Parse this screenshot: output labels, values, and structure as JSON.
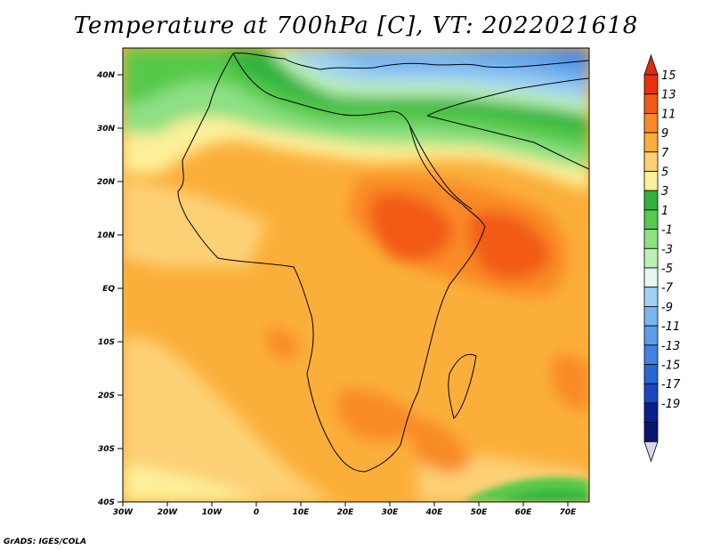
{
  "title": "Temperature at 700hPa [C], VT: 2022021618",
  "footer": "GrADS: IGES/COLA",
  "map": {
    "lat_labels": [
      "40N",
      "30N",
      "20N",
      "10N",
      "EQ",
      "10S",
      "20S",
      "30S",
      "40S"
    ],
    "lon_labels": [
      "30W",
      "20W",
      "10W",
      "0",
      "10E",
      "20E",
      "30E",
      "40E",
      "50E",
      "60E",
      "70E"
    ],
    "lat_range": [
      -40,
      45
    ],
    "lon_range": [
      -30,
      75
    ]
  },
  "colorbar": {
    "labels": [
      "15",
      "13",
      "11",
      "9",
      "7",
      "5",
      "3",
      "1",
      "-1",
      "-3",
      "-5",
      "-7",
      "-9",
      "-11",
      "-13",
      "-15",
      "-17",
      "-19"
    ],
    "colors": [
      "#e8300c",
      "#f25a18",
      "#f98a25",
      "#fbaf3a",
      "#fdd076",
      "#fdf09a",
      "#2fb33e",
      "#56c94c",
      "#8de083",
      "#bdf0b5",
      "#e6f7f2",
      "#9fd2f2",
      "#78b6ef",
      "#5a9ded",
      "#3f82e6",
      "#2966d6",
      "#1a46c0",
      "#0b1f8c",
      "#0a1670"
    ],
    "top_color": "#e02a10",
    "bottom_color": "#d8d4f0"
  }
}
